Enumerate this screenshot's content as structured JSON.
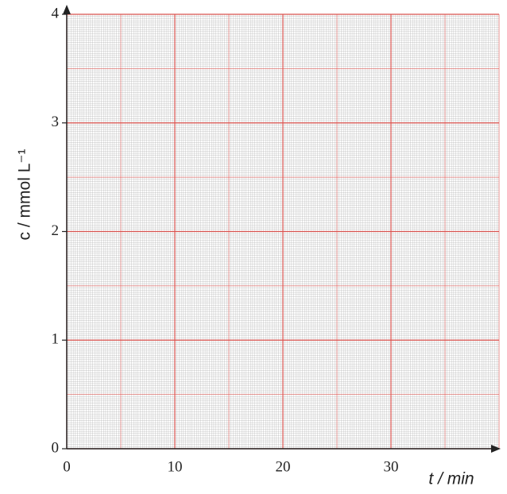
{
  "chart_data": {
    "type": "line",
    "xlabel": "t / min",
    "ylabel": "c / mmol L⁻¹",
    "xlim": [
      0,
      40
    ],
    "ylim": [
      0,
      4
    ],
    "xticks": [
      0,
      10,
      20,
      30
    ],
    "yticks": [
      0,
      1,
      2,
      3,
      4
    ],
    "grid": true,
    "grid_color": "#d9534f",
    "minor_grid_color": "#a0a0a0"
  }
}
